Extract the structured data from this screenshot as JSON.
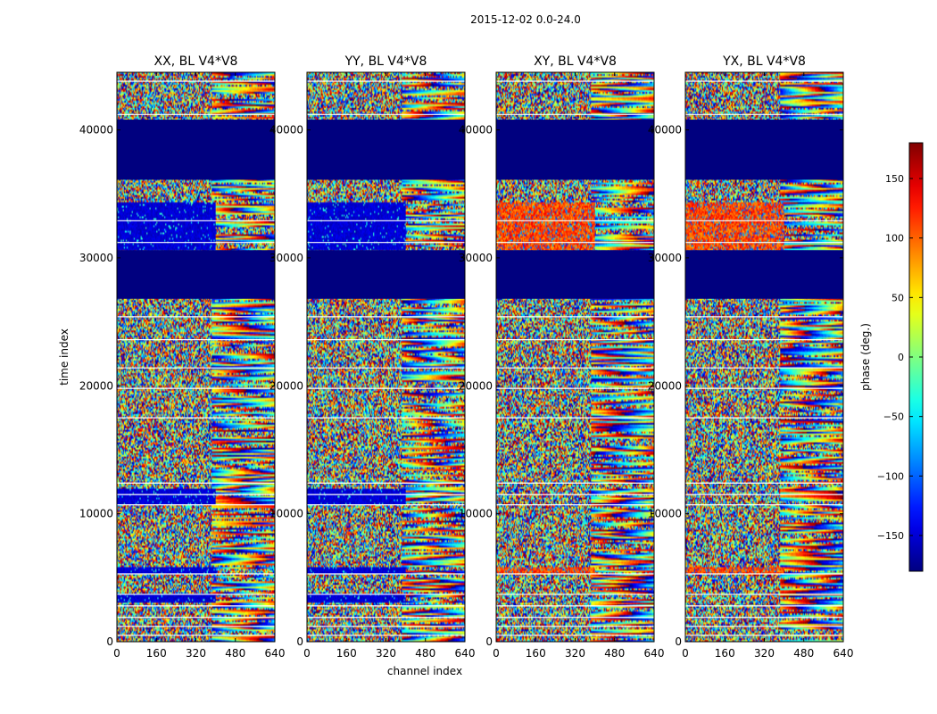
{
  "figure": {
    "suptitle": "2015-12-02 0.0-24.0"
  },
  "colors": {
    "masked": "#00007f",
    "gap_line": "#ffffff",
    "axis": "#000000"
  },
  "chart_data": {
    "type": "heatmap",
    "colormap": "jet",
    "panels": [
      {
        "title": "XX, BL V4*V8",
        "pol": "XX"
      },
      {
        "title": "YY, BL V4*V8",
        "pol": "YY"
      },
      {
        "title": "XY, BL V4*V8",
        "pol": "XY"
      },
      {
        "title": "YX, BL V4*V8",
        "pol": "YX"
      }
    ],
    "xlabel": "channel index",
    "ylabel": "time index",
    "xlim": [
      0,
      640
    ],
    "ylim": [
      0,
      44500
    ],
    "xticks": [
      0,
      160,
      320,
      480,
      640
    ],
    "yticks": [
      0,
      10000,
      20000,
      30000,
      40000
    ],
    "colorbar": {
      "label": "phase (deg.)",
      "range": [
        -180,
        180
      ],
      "ticks": [
        -150,
        -100,
        -50,
        0,
        50,
        100,
        150
      ],
      "tick_labels": [
        "−150",
        "−100",
        "−50",
        "0",
        "50",
        "100",
        "150"
      ]
    },
    "masked_time_ranges": [
      [
        26800,
        30600
      ],
      [
        36100,
        40800
      ]
    ],
    "gap_lines_time": [
      500,
      1200,
      1900,
      2800,
      3700,
      5300,
      10700,
      11500,
      12400,
      17500,
      19800,
      21400,
      23600,
      25400,
      31200,
      32900,
      41200,
      43800
    ],
    "description": "Phase (deg.) vs channel index and time index for baseline V4*V8, four polarization products"
  }
}
